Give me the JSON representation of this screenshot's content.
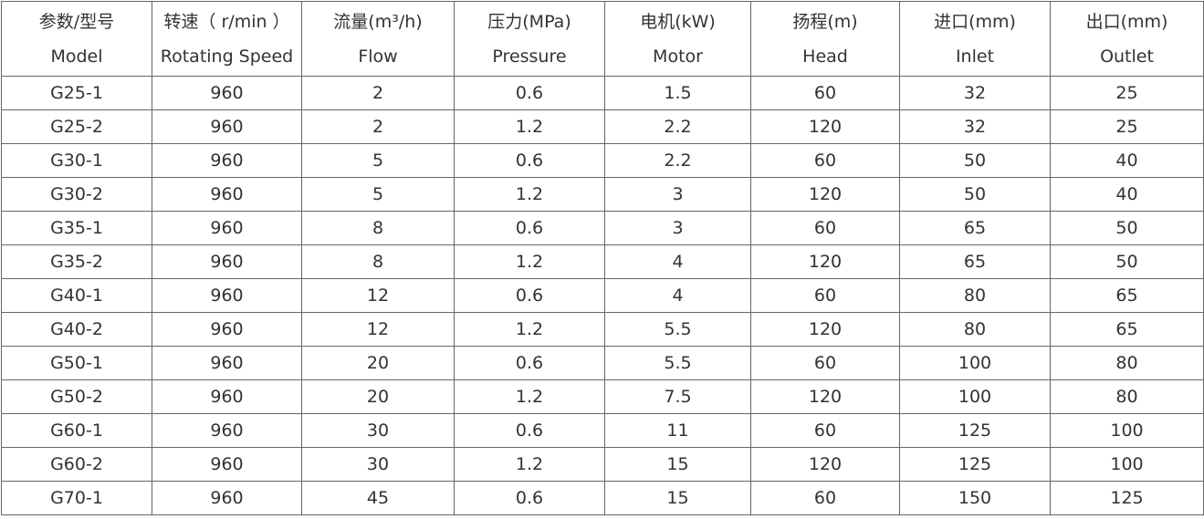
{
  "table": {
    "header": [
      [
        "参数/型号",
        "Model"
      ],
      [
        "转速（ r/min ）",
        "Rotating Speed"
      ],
      [
        "流量(m³/h)",
        "Flow"
      ],
      [
        "压力(MPa)",
        "Pressure"
      ],
      [
        "电机(kW)",
        "Motor"
      ],
      [
        "扬程(m)",
        "Head"
      ],
      [
        "进口(mm)",
        "Inlet"
      ],
      [
        "出口(mm)",
        "Outlet"
      ]
    ],
    "rows": [
      [
        "G25-1",
        960,
        2,
        0.6,
        1.5,
        60,
        32,
        25
      ],
      [
        "G25-2",
        960,
        2,
        1.2,
        2.2,
        120,
        32,
        25
      ],
      [
        "G30-1",
        960,
        5,
        0.6,
        2.2,
        60,
        50,
        40
      ],
      [
        "G30-2",
        960,
        5,
        1.2,
        3,
        120,
        50,
        40
      ],
      [
        "G35-1",
        960,
        8,
        0.6,
        3,
        60,
        65,
        50
      ],
      [
        "G35-2",
        960,
        8,
        1.2,
        4,
        120,
        65,
        50
      ],
      [
        "G40-1",
        960,
        12,
        0.6,
        4,
        60,
        80,
        65
      ],
      [
        "G40-2",
        960,
        12,
        1.2,
        5.5,
        120,
        80,
        65
      ],
      [
        "G50-1",
        960,
        20,
        0.6,
        5.5,
        60,
        100,
        80
      ],
      [
        "G50-2",
        960,
        20,
        1.2,
        7.5,
        120,
        100,
        80
      ],
      [
        "G60-1",
        960,
        30,
        0.6,
        11,
        60,
        125,
        100
      ],
      [
        "G60-2",
        960,
        30,
        1.2,
        15,
        120,
        125,
        100
      ],
      [
        "G70-1",
        960,
        45,
        0.6,
        15,
        60,
        150,
        125
      ]
    ]
  }
}
